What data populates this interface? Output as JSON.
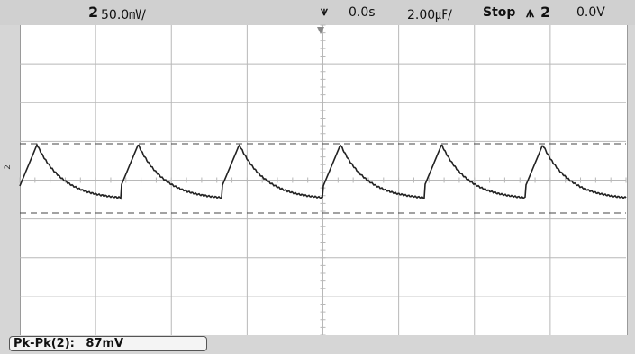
{
  "top": {
    "channel": "2",
    "volts_per_div": "50.0㎷/",
    "trigger_icon": "trigger-edge-icon",
    "time_offset": "0.0s",
    "time_per_div": "2.00㎌/",
    "run_state": "Stop",
    "trigger_slope_icon": "falling-edge-icon",
    "trigger_channel": "2",
    "trigger_level": "0.0V"
  },
  "measurement": {
    "label": "Pk-Pk(2):",
    "value": "87mV"
  },
  "side_marker": "2",
  "colors": {
    "trace": "#222222",
    "grid": "#b8b8b8",
    "cursor": "#444444"
  }
}
